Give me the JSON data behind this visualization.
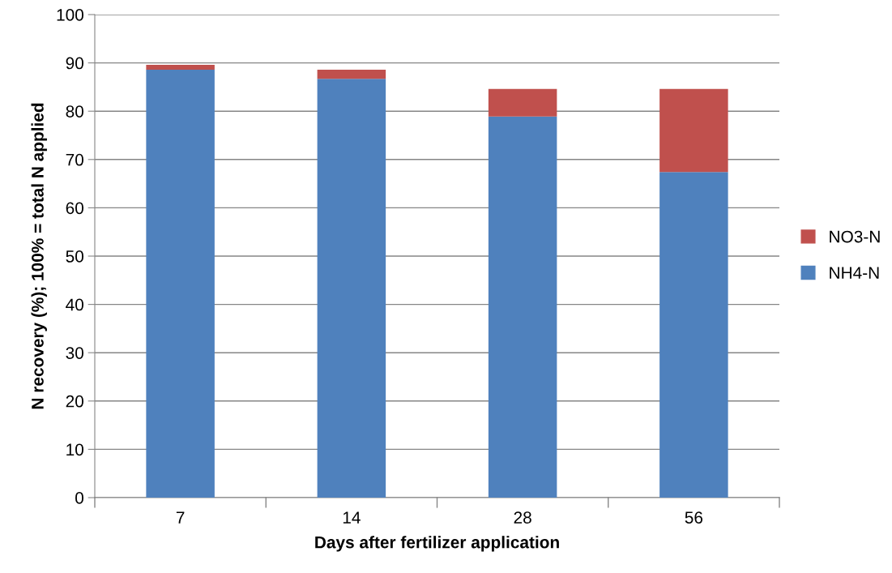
{
  "chart_data": {
    "type": "bar",
    "stacked": true,
    "xlabel": "Days after fertilizer application",
    "ylabel": "N recovery (%); 100% = total N applied",
    "categories": [
      "7",
      "14",
      "28",
      "56"
    ],
    "series": [
      {
        "name": "NH4-N",
        "color": "#4f81bd",
        "values": [
          88.6,
          86.7,
          78.9,
          67.4
        ]
      },
      {
        "name": "NO3-N",
        "color": "#c0504d",
        "values": [
          1.0,
          1.9,
          5.7,
          17.2
        ]
      }
    ],
    "ylim": [
      0,
      100
    ],
    "yticks": [
      0,
      10,
      20,
      30,
      40,
      50,
      60,
      70,
      80,
      90,
      100
    ],
    "grid": "y",
    "legend": "right"
  }
}
